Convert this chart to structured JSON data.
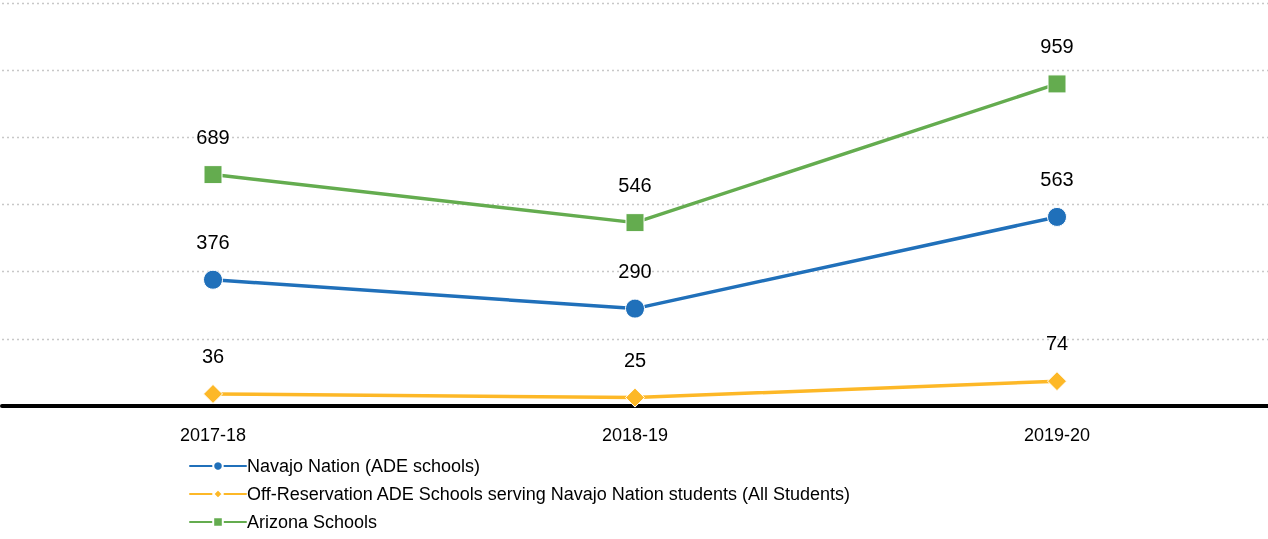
{
  "chart_data": {
    "type": "line",
    "categories": [
      "2017-18",
      "2018-19",
      "2019-20"
    ],
    "series": [
      {
        "name": "Navajo Nation (ADE schools)",
        "color": "#2070ba",
        "values": [
          376,
          290,
          563
        ],
        "marker": "circle"
      },
      {
        "name": "Off-Reservation ADE Schools serving Navajo Nation students (All Students)",
        "color": "#fdb827",
        "values": [
          36,
          25,
          74
        ],
        "marker": "diamond"
      },
      {
        "name": "Arizona Schools",
        "color": "#64ac4f",
        "values": [
          689,
          546,
          959
        ],
        "marker": "square"
      }
    ],
    "ylim": [
      0,
      1200
    ],
    "yticks": [
      {
        "value": 0,
        "label": null
      },
      {
        "value": 200,
        "label": null
      },
      {
        "value": 400,
        "label": null
      },
      {
        "value": 600,
        "label": null
      },
      {
        "value": 800,
        "label": null
      },
      {
        "value": 1000,
        "label": null
      },
      {
        "value": 1200,
        "label": null
      }
    ],
    "tick_labels": "x",
    "grid": "y",
    "legend": "bottom left",
    "data_labels": true,
    "line_style": "solid"
  }
}
